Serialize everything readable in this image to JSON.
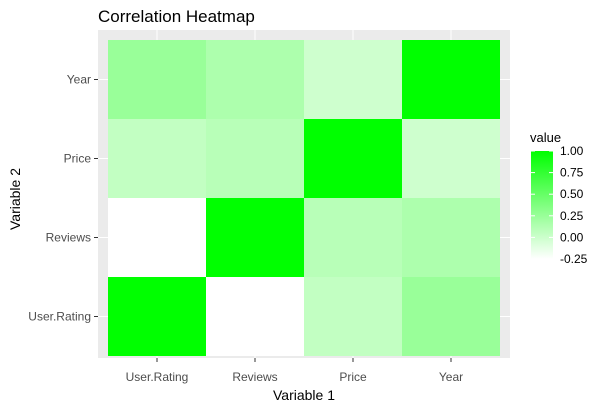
{
  "chart_data": {
    "type": "heatmap",
    "title": "Correlation Heatmap",
    "xlabel": "Variable 1",
    "ylabel": "Variable 2",
    "x_categories": [
      "User.Rating",
      "Reviews",
      "Price",
      "Year"
    ],
    "y_categories": [
      "User.Rating",
      "Reviews",
      "Price",
      "Year"
    ],
    "values": [
      [
        1.0,
        -0.25,
        0.05,
        0.25
      ],
      [
        -0.25,
        1.0,
        0.1,
        0.15
      ],
      [
        0.05,
        0.1,
        1.0,
        -0.01
      ],
      [
        0.25,
        0.15,
        -0.01,
        1.0
      ]
    ],
    "color_scale": {
      "min": -0.25,
      "max": 1.0,
      "low_color": "#ffffff",
      "high_color": "#00ff00"
    },
    "legend": {
      "title": "value",
      "ticks": [
        {
          "value": 1.0,
          "label": "1.00"
        },
        {
          "value": 0.75,
          "label": "0.75"
        },
        {
          "value": 0.5,
          "label": "0.50"
        },
        {
          "value": 0.25,
          "label": "0.25"
        },
        {
          "value": 0.0,
          "label": "0.00"
        },
        {
          "value": -0.25,
          "label": "-0.25"
        }
      ],
      "position": "right"
    },
    "panel_background": "#ebebeb",
    "gridlines": true
  }
}
